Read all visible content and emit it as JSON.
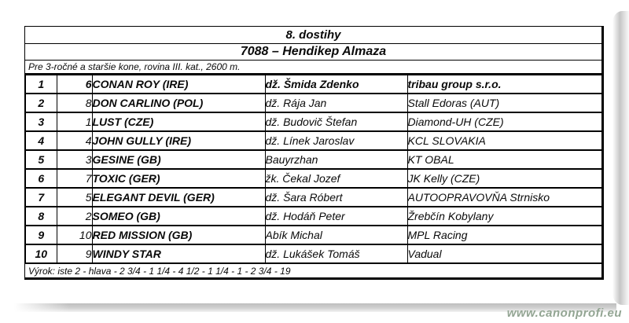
{
  "race": {
    "title": "8. dostihy",
    "subtitle": "7088 – Hendikep Almaza",
    "conditions": "Pre 3-ročné a staršie kone, rovina III. kat., 2600 m.",
    "verdict": "Výrok: iste 2 - hlava - 2 3/4 - 1 1/4 - 4 1/2 - 1 1/4 - 1 - 2 3/4 - 19"
  },
  "entries": [
    {
      "rank": "1",
      "number": "6",
      "horse": "CONAN ROY (IRE)",
      "jockey": "dž. Šmida Zdenko",
      "owner": "tribau group s.r.o.",
      "winner": true
    },
    {
      "rank": "2",
      "number": "8",
      "horse": "DON CARLINO (POL)",
      "jockey": "dž. Rája Jan",
      "owner": "Stall Edoras (AUT)",
      "winner": false
    },
    {
      "rank": "3",
      "number": "1",
      "horse": "LUST (CZE)",
      "jockey": "dž. Budovič Štefan",
      "owner": "Diamond-UH (CZE)",
      "winner": false
    },
    {
      "rank": "4",
      "number": "4",
      "horse": "JOHN GULLY (IRE)",
      "jockey": "dž. Línek Jaroslav",
      "owner": "KCL SLOVAKIA",
      "winner": false
    },
    {
      "rank": "5",
      "number": "3",
      "horse": "GESINE (GB)",
      "jockey": "Bauyrzhan",
      "owner": "KT OBAL",
      "winner": false
    },
    {
      "rank": "6",
      "number": "7",
      "horse": "TOXIC (GER)",
      "jockey": "žk. Čekal Jozef",
      "owner": "JK Kelly (CZE)",
      "winner": false
    },
    {
      "rank": "7",
      "number": "5",
      "horse": "ELEGANT DEVIL (GER)",
      "jockey": "dž. Šara Róbert",
      "owner": "AUTOOPRAVOVŇA Strnisko",
      "winner": false
    },
    {
      "rank": "8",
      "number": "2",
      "horse": "SOMEO (GB)",
      "jockey": "dž. Hodáň Peter",
      "owner": "Žrebčín Kobylany",
      "winner": false
    },
    {
      "rank": "9",
      "number": "10",
      "horse": "RED MISSION (GB)",
      "jockey": "Abík Michal",
      "owner": "MPL Racing",
      "winner": false
    },
    {
      "rank": "10",
      "number": "9",
      "horse": "WINDY STAR",
      "jockey": "dž. Lukášek Tomáš",
      "owner": "Vadual",
      "winner": false
    }
  ],
  "footer": {
    "watermark": "www.canonprofi.eu"
  },
  "colors": {
    "watermark_green": "#93a593",
    "table_border": "#000000",
    "shadow_gray": "#c6c6c6"
  }
}
